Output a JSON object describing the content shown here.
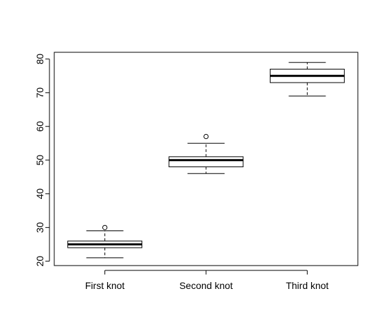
{
  "chart_data": {
    "type": "boxplot",
    "title": "",
    "xlabel": "",
    "ylabel": "",
    "categories": [
      "First knot",
      "Second knot",
      "Third knot"
    ],
    "ylim": [
      18.7,
      82.0
    ],
    "yticks": [
      "20",
      "30",
      "40",
      "50",
      "60",
      "70",
      "80"
    ],
    "boxes": [
      {
        "name": "First knot",
        "whisker_low": 21,
        "q1": 24,
        "median": 25,
        "q3": 26,
        "whisker_high": 29,
        "outliers": [
          30
        ]
      },
      {
        "name": "Second knot",
        "whisker_low": 46,
        "q1": 48,
        "median": 50,
        "q3": 51,
        "whisker_high": 55,
        "outliers": [
          57
        ]
      },
      {
        "name": "Third knot",
        "whisker_low": 69,
        "q1": 73,
        "median": 75,
        "q3": 77,
        "whisker_high": 79,
        "outliers": []
      }
    ],
    "grid": false,
    "legend": "none"
  }
}
